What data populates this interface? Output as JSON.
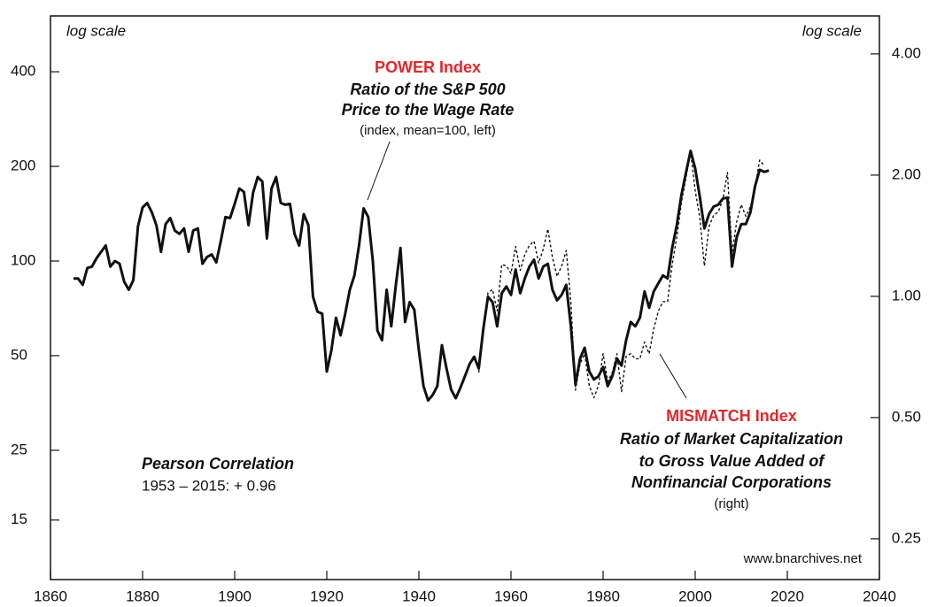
{
  "chart_data": {
    "type": "line",
    "log_scale": true,
    "xlim": [
      1860,
      2040
    ],
    "xticks": [
      1860,
      1880,
      1900,
      1920,
      1940,
      1960,
      1980,
      2000,
      2020,
      2040
    ],
    "ylim": [
      9.7,
      602
    ],
    "yticks": [
      15,
      25,
      50,
      100,
      200,
      400
    ],
    "y2lim": [
      0.198,
      4.97
    ],
    "y2ticks": [
      {
        "value": 4,
        "label": "4.00"
      },
      {
        "value": 2,
        "label": "2.00"
      },
      {
        "value": 1,
        "label": "1.00"
      },
      {
        "value": 0.5,
        "label": "0.50"
      },
      0.25
    ],
    "y_axis_note": "log scale",
    "y2_axis_note": "log scale",
    "annotations": {
      "power": [
        "POWER Index",
        "Ratio of the S&P 500",
        "Price to the Wage Rate",
        "(index, mean=100, left)"
      ],
      "mismatch": [
        "MISMATCH Index",
        "Ratio of Market Capitalization",
        "to Gross Value Added of",
        "Nonfinancial Corporations",
        "(right)"
      ],
      "correlation": [
        "Pearson Correlation",
        "1953 – 2015:  + 0.96"
      ],
      "source": "www.bnarchives.net"
    },
    "series": [
      {
        "name": "POWER Index",
        "color": "#111111",
        "style": "solid",
        "x": [
          1865,
          1866,
          1867,
          1868,
          1869,
          1870,
          1871,
          1872,
          1873,
          1874,
          1875,
          1876,
          1877,
          1878,
          1879,
          1880,
          1881,
          1882,
          1883,
          1884,
          1885,
          1886,
          1887,
          1888,
          1889,
          1890,
          1891,
          1892,
          1893,
          1894,
          1895,
          1896,
          1897,
          1898,
          1899,
          1900,
          1901,
          1902,
          1903,
          1904,
          1905,
          1906,
          1907,
          1908,
          1909,
          1910,
          1911,
          1912,
          1913,
          1914,
          1915,
          1916,
          1917,
          1918,
          1919,
          1920,
          1921,
          1922,
          1923,
          1924,
          1925,
          1926,
          1927,
          1928,
          1929,
          1930,
          1931,
          1932,
          1933,
          1934,
          1935,
          1936,
          1937,
          1938,
          1939,
          1940,
          1941,
          1942,
          1943,
          1944,
          1945,
          1946,
          1947,
          1948,
          1949,
          1950,
          1951,
          1952,
          1953,
          1954,
          1955,
          1956,
          1957,
          1958,
          1959,
          1960,
          1961,
          1962,
          1963,
          1964,
          1965,
          1966,
          1967,
          1968,
          1969,
          1970,
          1971,
          1972,
          1973,
          1974,
          1975,
          1976,
          1977,
          1978,
          1979,
          1980,
          1981,
          1982,
          1983,
          1984,
          1985,
          1986,
          1987,
          1988,
          1989,
          1990,
          1991,
          1992,
          1993,
          1994,
          1995,
          1996,
          1997,
          1998,
          1999,
          2000,
          2001,
          2002,
          2003,
          2004,
          2005,
          2006,
          2007,
          2008,
          2009,
          2010,
          2011,
          2012,
          2013,
          2014,
          2015,
          2016
        ],
        "values": [
          88,
          88,
          84,
          95,
          96,
          102,
          107,
          112,
          96,
          100,
          98,
          86,
          81,
          87,
          129,
          148,
          153,
          143,
          130,
          107,
          131,
          137,
          125,
          122,
          127,
          107,
          125,
          127,
          98,
          103,
          105,
          99,
          116,
          138,
          137,
          152,
          170,
          166,
          130,
          165,
          185,
          179,
          118,
          170,
          185,
          153,
          151,
          152,
          122,
          112,
          141,
          130,
          77,
          69,
          68,
          44.5,
          52,
          66,
          58,
          68,
          81,
          90,
          112,
          147,
          138,
          100,
          60,
          56,
          81,
          62,
          84,
          110,
          64,
          74,
          70,
          52,
          40,
          36,
          37.5,
          40,
          54,
          45.5,
          39,
          36.6,
          39.5,
          43,
          47,
          49.6,
          45.5,
          61,
          77,
          74,
          62,
          79,
          83,
          78,
          94,
          79,
          88,
          96,
          101,
          88,
          96,
          98,
          81,
          75,
          78,
          84,
          62,
          40.5,
          49,
          53,
          44.5,
          42,
          43,
          46,
          40,
          43,
          49,
          46.5,
          56,
          64,
          62,
          66,
          80,
          71,
          80,
          85,
          90,
          88,
          110,
          130,
          162,
          191,
          224,
          197,
          160,
          127,
          141,
          149,
          151,
          158,
          159,
          96,
          119,
          131,
          131,
          143,
          173,
          195,
          192,
          194
        ]
      },
      {
        "name": "MISMATCH Index",
        "color": "#111111",
        "style": "dashed",
        "axis": "y2",
        "x": [
          1953,
          1954,
          1955,
          1956,
          1957,
          1958,
          1959,
          1960,
          1961,
          1962,
          1963,
          1964,
          1965,
          1966,
          1967,
          1968,
          1969,
          1970,
          1971,
          1972,
          1973,
          1974,
          1975,
          1976,
          1977,
          1978,
          1979,
          1980,
          1981,
          1982,
          1983,
          1984,
          1985,
          1986,
          1987,
          1988,
          1989,
          1990,
          1991,
          1992,
          1993,
          1994,
          1995,
          1996,
          1997,
          1998,
          1999,
          2000,
          2001,
          2002,
          2003,
          2004,
          2005,
          2006,
          2007,
          2008,
          2009,
          2010,
          2011,
          2012,
          2013,
          2014,
          2015
        ],
        "values": [
          0.647,
          0.81,
          1.02,
          1.04,
          0.92,
          1.2,
          1.19,
          1.14,
          1.33,
          1.16,
          1.27,
          1.34,
          1.37,
          1.21,
          1.31,
          1.47,
          1.25,
          1.12,
          1.19,
          1.3,
          0.97,
          0.585,
          0.68,
          0.72,
          0.6,
          0.56,
          0.6,
          0.72,
          0.615,
          0.647,
          0.72,
          0.58,
          0.71,
          0.72,
          0.7,
          0.7,
          0.77,
          0.72,
          0.83,
          0.92,
          0.97,
          0.97,
          1.2,
          1.4,
          1.71,
          1.97,
          2.29,
          1.83,
          1.57,
          1.19,
          1.49,
          1.59,
          1.62,
          1.74,
          2.03,
          1.28,
          1.53,
          1.69,
          1.58,
          1.67,
          1.87,
          2.18,
          2.11
        ]
      }
    ]
  }
}
